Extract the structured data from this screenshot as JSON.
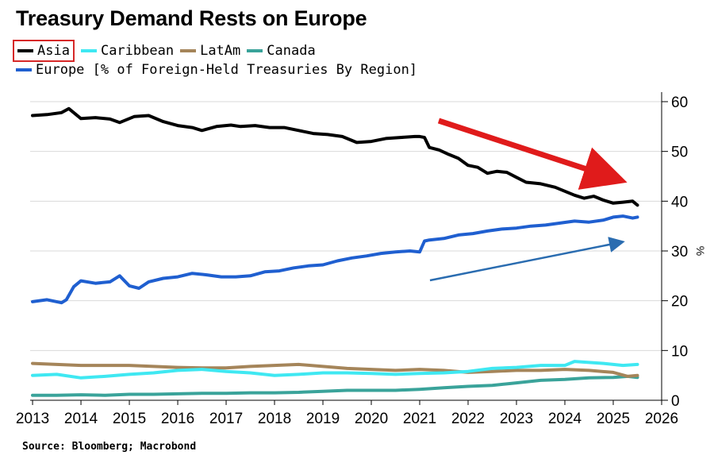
{
  "title": "Treasury Demand Rests on Europe",
  "source": "Source: Bloomberg; Macrobond",
  "legend": [
    {
      "label": "Asia",
      "color": "#000000",
      "highlighted": true
    },
    {
      "label": "Caribbean",
      "color": "#3fe8f2"
    },
    {
      "label": "LatAm",
      "color": "#a5855a"
    },
    {
      "label": "Canada",
      "color": "#3aa39a"
    },
    {
      "label": "Europe [% of Foreign-Held Treasuries By Region]",
      "color": "#1f5fd0"
    }
  ],
  "chart_data": {
    "type": "line",
    "title": "Treasury Demand Rests on Europe",
    "xlabel": "",
    "ylabel": "%",
    "xlim": [
      2012.95,
      2026.0
    ],
    "ylim": [
      0,
      60
    ],
    "x_ticks": [
      "2013",
      "2014",
      "2015",
      "2016",
      "2017",
      "2018",
      "2019",
      "2020",
      "2021",
      "2022",
      "2023",
      "2024",
      "2025",
      "2026"
    ],
    "y_ticks": [
      "0",
      "10",
      "20",
      "30",
      "40",
      "50",
      "60"
    ],
    "grid": "horizontal",
    "axis_side": "right",
    "series": [
      {
        "name": "Asia",
        "color": "#000000",
        "x": [
          2013.0,
          2013.3,
          2013.6,
          2013.75,
          2014.0,
          2014.3,
          2014.6,
          2014.8,
          2015.1,
          2015.4,
          2015.7,
          2016.0,
          2016.3,
          2016.5,
          2016.8,
          2017.1,
          2017.3,
          2017.6,
          2017.9,
          2018.2,
          2018.5,
          2018.8,
          2019.1,
          2019.4,
          2019.7,
          2020.0,
          2020.3,
          2020.6,
          2020.9,
          2021.0,
          2021.1,
          2021.2,
          2021.4,
          2021.6,
          2021.8,
          2022.0,
          2022.2,
          2022.4,
          2022.6,
          2022.8,
          2023.0,
          2023.2,
          2023.5,
          2023.8,
          2024.0,
          2024.2,
          2024.4,
          2024.6,
          2024.8,
          2025.0,
          2025.2,
          2025.4,
          2025.5
        ],
        "values": [
          57.2,
          57.4,
          57.8,
          58.6,
          56.6,
          56.8,
          56.5,
          55.8,
          57.0,
          57.2,
          56.0,
          55.2,
          54.8,
          54.2,
          55.0,
          55.3,
          55.0,
          55.2,
          54.8,
          54.8,
          54.2,
          53.6,
          53.4,
          53.0,
          51.8,
          52.0,
          52.6,
          52.8,
          53.0,
          53.0,
          52.8,
          50.8,
          50.3,
          49.4,
          48.6,
          47.2,
          46.8,
          45.6,
          46.0,
          45.8,
          44.8,
          43.8,
          43.5,
          42.8,
          42.0,
          41.2,
          40.6,
          41.0,
          40.2,
          39.6,
          39.8,
          40.0,
          39.2
        ]
      },
      {
        "name": "Europe",
        "color": "#1f5fd0",
        "x": [
          2013.0,
          2013.3,
          2013.6,
          2013.7,
          2013.85,
          2014.0,
          2014.3,
          2014.6,
          2014.8,
          2015.0,
          2015.2,
          2015.4,
          2015.7,
          2016.0,
          2016.3,
          2016.6,
          2016.9,
          2017.2,
          2017.5,
          2017.8,
          2018.1,
          2018.4,
          2018.7,
          2019.0,
          2019.3,
          2019.6,
          2019.9,
          2020.2,
          2020.5,
          2020.8,
          2021.0,
          2021.1,
          2021.2,
          2021.5,
          2021.8,
          2022.1,
          2022.4,
          2022.7,
          2023.0,
          2023.3,
          2023.6,
          2023.9,
          2024.2,
          2024.5,
          2024.8,
          2025.0,
          2025.2,
          2025.4,
          2025.5
        ],
        "values": [
          19.8,
          20.2,
          19.6,
          20.2,
          22.8,
          24.0,
          23.5,
          23.8,
          25.0,
          23.0,
          22.5,
          23.8,
          24.5,
          24.8,
          25.5,
          25.2,
          24.8,
          24.8,
          25.0,
          25.8,
          26.0,
          26.6,
          27.0,
          27.2,
          28.0,
          28.6,
          29.0,
          29.5,
          29.8,
          30.0,
          29.8,
          32.0,
          32.2,
          32.5,
          33.2,
          33.5,
          34.0,
          34.4,
          34.6,
          35.0,
          35.2,
          35.6,
          36.0,
          35.8,
          36.2,
          36.8,
          37.0,
          36.6,
          36.8
        ]
      },
      {
        "name": "Caribbean",
        "color": "#3fe8f2",
        "x": [
          2013.0,
          2013.5,
          2014.0,
          2014.5,
          2015.0,
          2015.5,
          2016.0,
          2016.5,
          2017.0,
          2017.5,
          2018.0,
          2018.5,
          2019.0,
          2019.5,
          2020.0,
          2020.5,
          2021.0,
          2021.5,
          2022.0,
          2022.5,
          2023.0,
          2023.5,
          2024.0,
          2024.2,
          2024.5,
          2024.8,
          2025.0,
          2025.2,
          2025.5
        ],
        "values": [
          5.0,
          5.2,
          4.5,
          4.8,
          5.2,
          5.5,
          6.0,
          6.2,
          5.8,
          5.5,
          5.0,
          5.2,
          5.5,
          5.5,
          5.4,
          5.2,
          5.4,
          5.5,
          5.8,
          6.4,
          6.6,
          7.0,
          7.0,
          7.8,
          7.6,
          7.4,
          7.2,
          7.0,
          7.2
        ]
      },
      {
        "name": "LatAm",
        "color": "#a5855a",
        "x": [
          2013.0,
          2013.5,
          2014.0,
          2014.5,
          2015.0,
          2015.5,
          2016.0,
          2016.5,
          2017.0,
          2017.5,
          2018.0,
          2018.5,
          2019.0,
          2019.5,
          2020.0,
          2020.5,
          2021.0,
          2021.5,
          2022.0,
          2022.5,
          2023.0,
          2023.5,
          2024.0,
          2024.5,
          2025.0,
          2025.3,
          2025.5
        ],
        "values": [
          7.4,
          7.2,
          7.0,
          7.0,
          7.0,
          6.8,
          6.6,
          6.5,
          6.5,
          6.8,
          7.0,
          7.2,
          6.8,
          6.4,
          6.2,
          6.0,
          6.2,
          6.0,
          5.6,
          5.8,
          6.0,
          6.0,
          6.2,
          6.0,
          5.6,
          4.8,
          5.0
        ]
      },
      {
        "name": "Canada",
        "color": "#3aa39a",
        "x": [
          2013.0,
          2013.5,
          2014.0,
          2014.5,
          2015.0,
          2015.5,
          2016.0,
          2016.5,
          2017.0,
          2017.5,
          2018.0,
          2018.5,
          2019.0,
          2019.5,
          2020.0,
          2020.5,
          2021.0,
          2021.5,
          2022.0,
          2022.5,
          2023.0,
          2023.5,
          2024.0,
          2024.5,
          2025.0,
          2025.3,
          2025.5
        ],
        "values": [
          1.0,
          1.0,
          1.1,
          1.0,
          1.2,
          1.2,
          1.3,
          1.4,
          1.4,
          1.5,
          1.5,
          1.6,
          1.8,
          2.0,
          2.0,
          2.0,
          2.2,
          2.5,
          2.8,
          3.0,
          3.5,
          4.0,
          4.2,
          4.5,
          4.6,
          4.8,
          4.6
        ]
      }
    ],
    "annotations": [
      {
        "type": "arrow",
        "color": "#e01b1b",
        "direction": "down-right"
      },
      {
        "type": "arrow",
        "color": "#2a6cb0",
        "direction": "up-right"
      }
    ]
  }
}
